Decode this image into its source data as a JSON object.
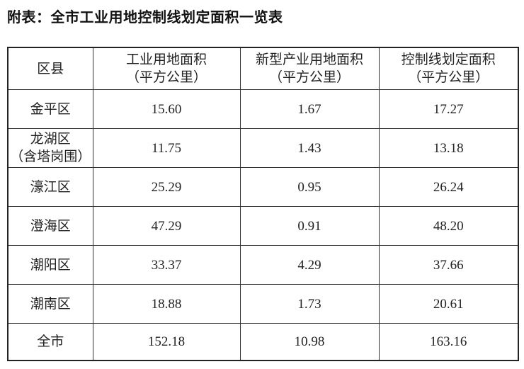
{
  "title": "附表：全市工业用地控制线划定面积一览表",
  "table": {
    "header": [
      [
        "区县"
      ],
      [
        "工业用地面积",
        "（平方公里）"
      ],
      [
        "新型产业用地面积",
        "（平方公里）"
      ],
      [
        "控制线划定面积",
        "（平方公里）"
      ]
    ],
    "rows": [
      [
        [
          "金平区"
        ],
        [
          "15.60"
        ],
        [
          "1.67"
        ],
        [
          "17.27"
        ]
      ],
      [
        [
          "龙湖区",
          "（含塔岗围）"
        ],
        [
          "11.75"
        ],
        [
          "1.43"
        ],
        [
          "13.18"
        ]
      ],
      [
        [
          "濠江区"
        ],
        [
          "25.29"
        ],
        [
          "0.95"
        ],
        [
          "26.24"
        ]
      ],
      [
        [
          "澄海区"
        ],
        [
          "47.29"
        ],
        [
          "0.91"
        ],
        [
          "48.20"
        ]
      ],
      [
        [
          "潮阳区"
        ],
        [
          "33.37"
        ],
        [
          "4.29"
        ],
        [
          "37.66"
        ]
      ],
      [
        [
          "潮南区"
        ],
        [
          "18.88"
        ],
        [
          "1.73"
        ],
        [
          "20.61"
        ]
      ],
      [
        [
          "全市"
        ],
        [
          "152.18"
        ],
        [
          "10.98"
        ],
        [
          "163.16"
        ]
      ]
    ]
  }
}
